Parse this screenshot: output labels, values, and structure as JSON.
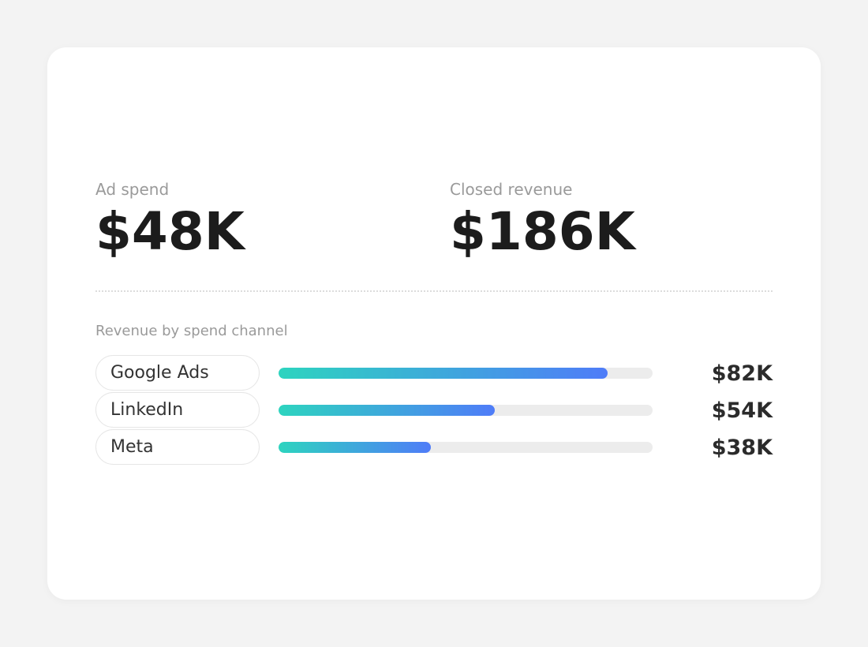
{
  "kpis": {
    "ad_spend": {
      "label": "Ad spend",
      "value": "$48K"
    },
    "closed_revenue": {
      "label": "Closed revenue",
      "value": "$186K"
    }
  },
  "chart_data": {
    "type": "bar",
    "title": "Revenue by spend channel",
    "categories": [
      "Google Ads",
      "LinkedIn",
      "Meta"
    ],
    "values": [
      82,
      54,
      38
    ],
    "value_labels": [
      "$82K",
      "$54K",
      "$38K"
    ],
    "xlim": [
      0,
      93.3
    ],
    "grid": false,
    "colors": {
      "fill_start": "#2dd4bf",
      "fill_end": "#4f7cf8",
      "track": "#ececec"
    }
  }
}
